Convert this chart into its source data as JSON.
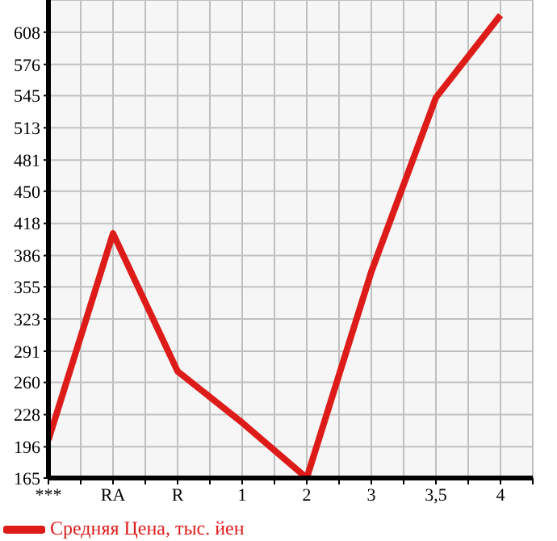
{
  "chart_data": {
    "type": "line",
    "categories": [
      "***",
      "RA",
      "R",
      "1",
      "2",
      "3",
      "3,5",
      "4"
    ],
    "series": [
      {
        "name": "Средняя Цена, тыс. йен",
        "color": "#dd1c1a",
        "values": [
          203,
          408,
          271,
          220,
          165,
          370,
          543,
          625
        ]
      }
    ],
    "ylim": [
      165,
      640
    ],
    "yticks": [
      165,
      196,
      228,
      260,
      291,
      323,
      355,
      386,
      418,
      450,
      481,
      513,
      545,
      576,
      608
    ],
    "grid": true,
    "legend": "bottom left",
    "marker": "none",
    "line_style": "solid"
  }
}
